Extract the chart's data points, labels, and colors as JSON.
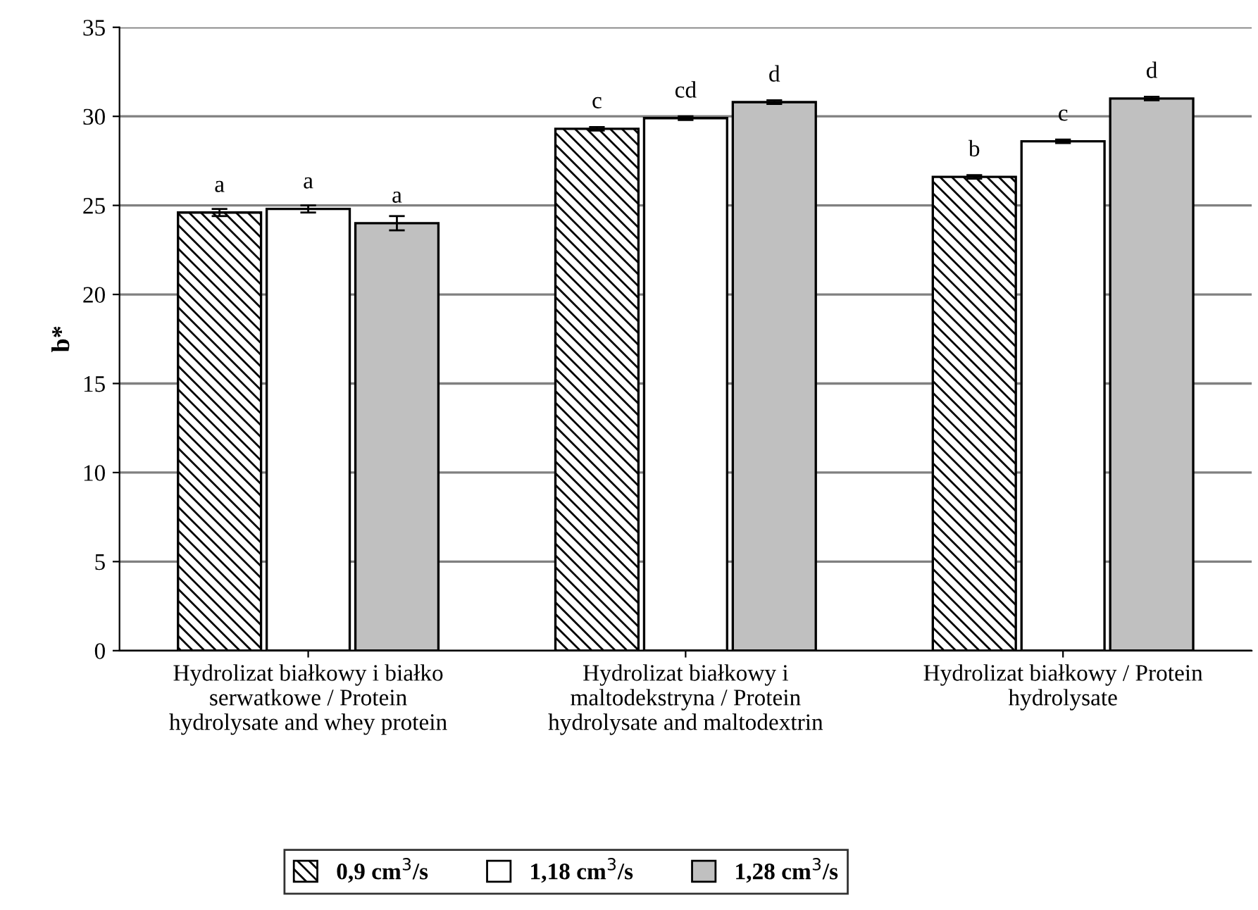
{
  "chart_data": {
    "type": "bar",
    "ylabel": "b*",
    "categories": [
      "Hydrolizat białkowy i białko\nserwatkowe / Protein\nhydrolysate and whey protein",
      "Hydrolizat białkowy i\nmaltodekstryna / Protein\nhydrolysate and maltodextrin",
      "Hydrolizat białkowy / Protein\nhydrolysate"
    ],
    "series": [
      {
        "name": "0,9 cm$^{3}$/s",
        "color": "#000000",
        "values": [
          24.6,
          29.3,
          26.6
        ],
        "errors": [
          0.2,
          0.1,
          0.1
        ],
        "value_labels": [
          "a",
          "c",
          "b"
        ]
      },
      {
        "name": "1,18 cm$^{3}$/s",
        "color": "#ffffff",
        "values": [
          24.8,
          29.9,
          28.6
        ],
        "errors": [
          0.2,
          0.1,
          0.1
        ],
        "value_labels": [
          "a",
          "cd",
          "c"
        ]
      },
      {
        "name": "1,28 cm$^{3}$/s",
        "color": "#c0c0c0",
        "values": [
          24.0,
          30.8,
          31.0
        ],
        "errors": [
          0.4,
          0.1,
          0.1
        ],
        "value_labels": [
          "a",
          "d",
          "d"
        ]
      }
    ],
    "ylim": [
      0,
      35
    ],
    "yticks": [
      0,
      5,
      10,
      15,
      20,
      25,
      30,
      35
    ],
    "grid": "y",
    "legend": "bottom"
  }
}
